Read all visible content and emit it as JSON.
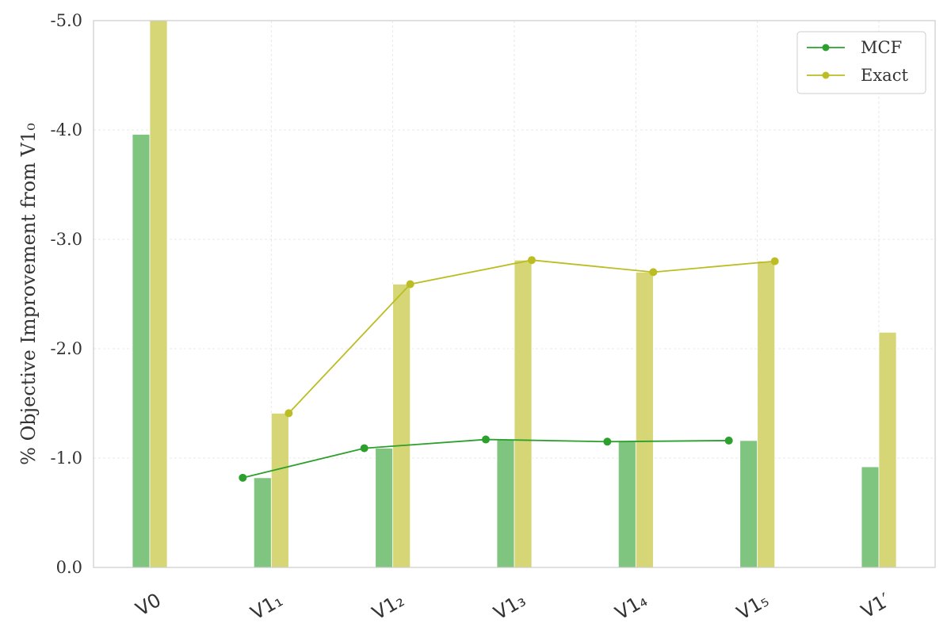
{
  "chart_data": {
    "type": "bar",
    "categories": [
      "V0",
      "V1₁",
      "V1₂",
      "V1₃",
      "V1₄",
      "V1₅",
      "V1′"
    ],
    "series": [
      {
        "name": "MCF",
        "values": [
          -3.96,
          -0.82,
          -1.09,
          -1.17,
          -1.15,
          -1.16,
          -0.92
        ],
        "color": "#7fc47f"
      },
      {
        "name": "Exact",
        "values": [
          -5.0,
          -1.41,
          -2.59,
          -2.81,
          -2.7,
          -2.8,
          -2.15
        ],
        "color": "#d6d676"
      }
    ],
    "lines": [
      {
        "name": "MCF",
        "values": [
          null,
          -0.82,
          -1.09,
          -1.17,
          -1.15,
          -1.16,
          null
        ],
        "color": "#2ca02c"
      },
      {
        "name": "Exact",
        "values": [
          null,
          -1.41,
          -2.59,
          -2.81,
          -2.7,
          -2.8,
          null
        ],
        "color": "#bcbd22"
      }
    ],
    "title": "",
    "xlabel": "",
    "ylabel": "% Objective Improvement from V1₀",
    "ylim": [
      0,
      -5.0
    ],
    "yticks": [
      "0.0",
      "-1.0",
      "-2.0",
      "-3.0",
      "-4.0",
      "-5.0"
    ],
    "grid": true,
    "legend_position": "top-right"
  }
}
